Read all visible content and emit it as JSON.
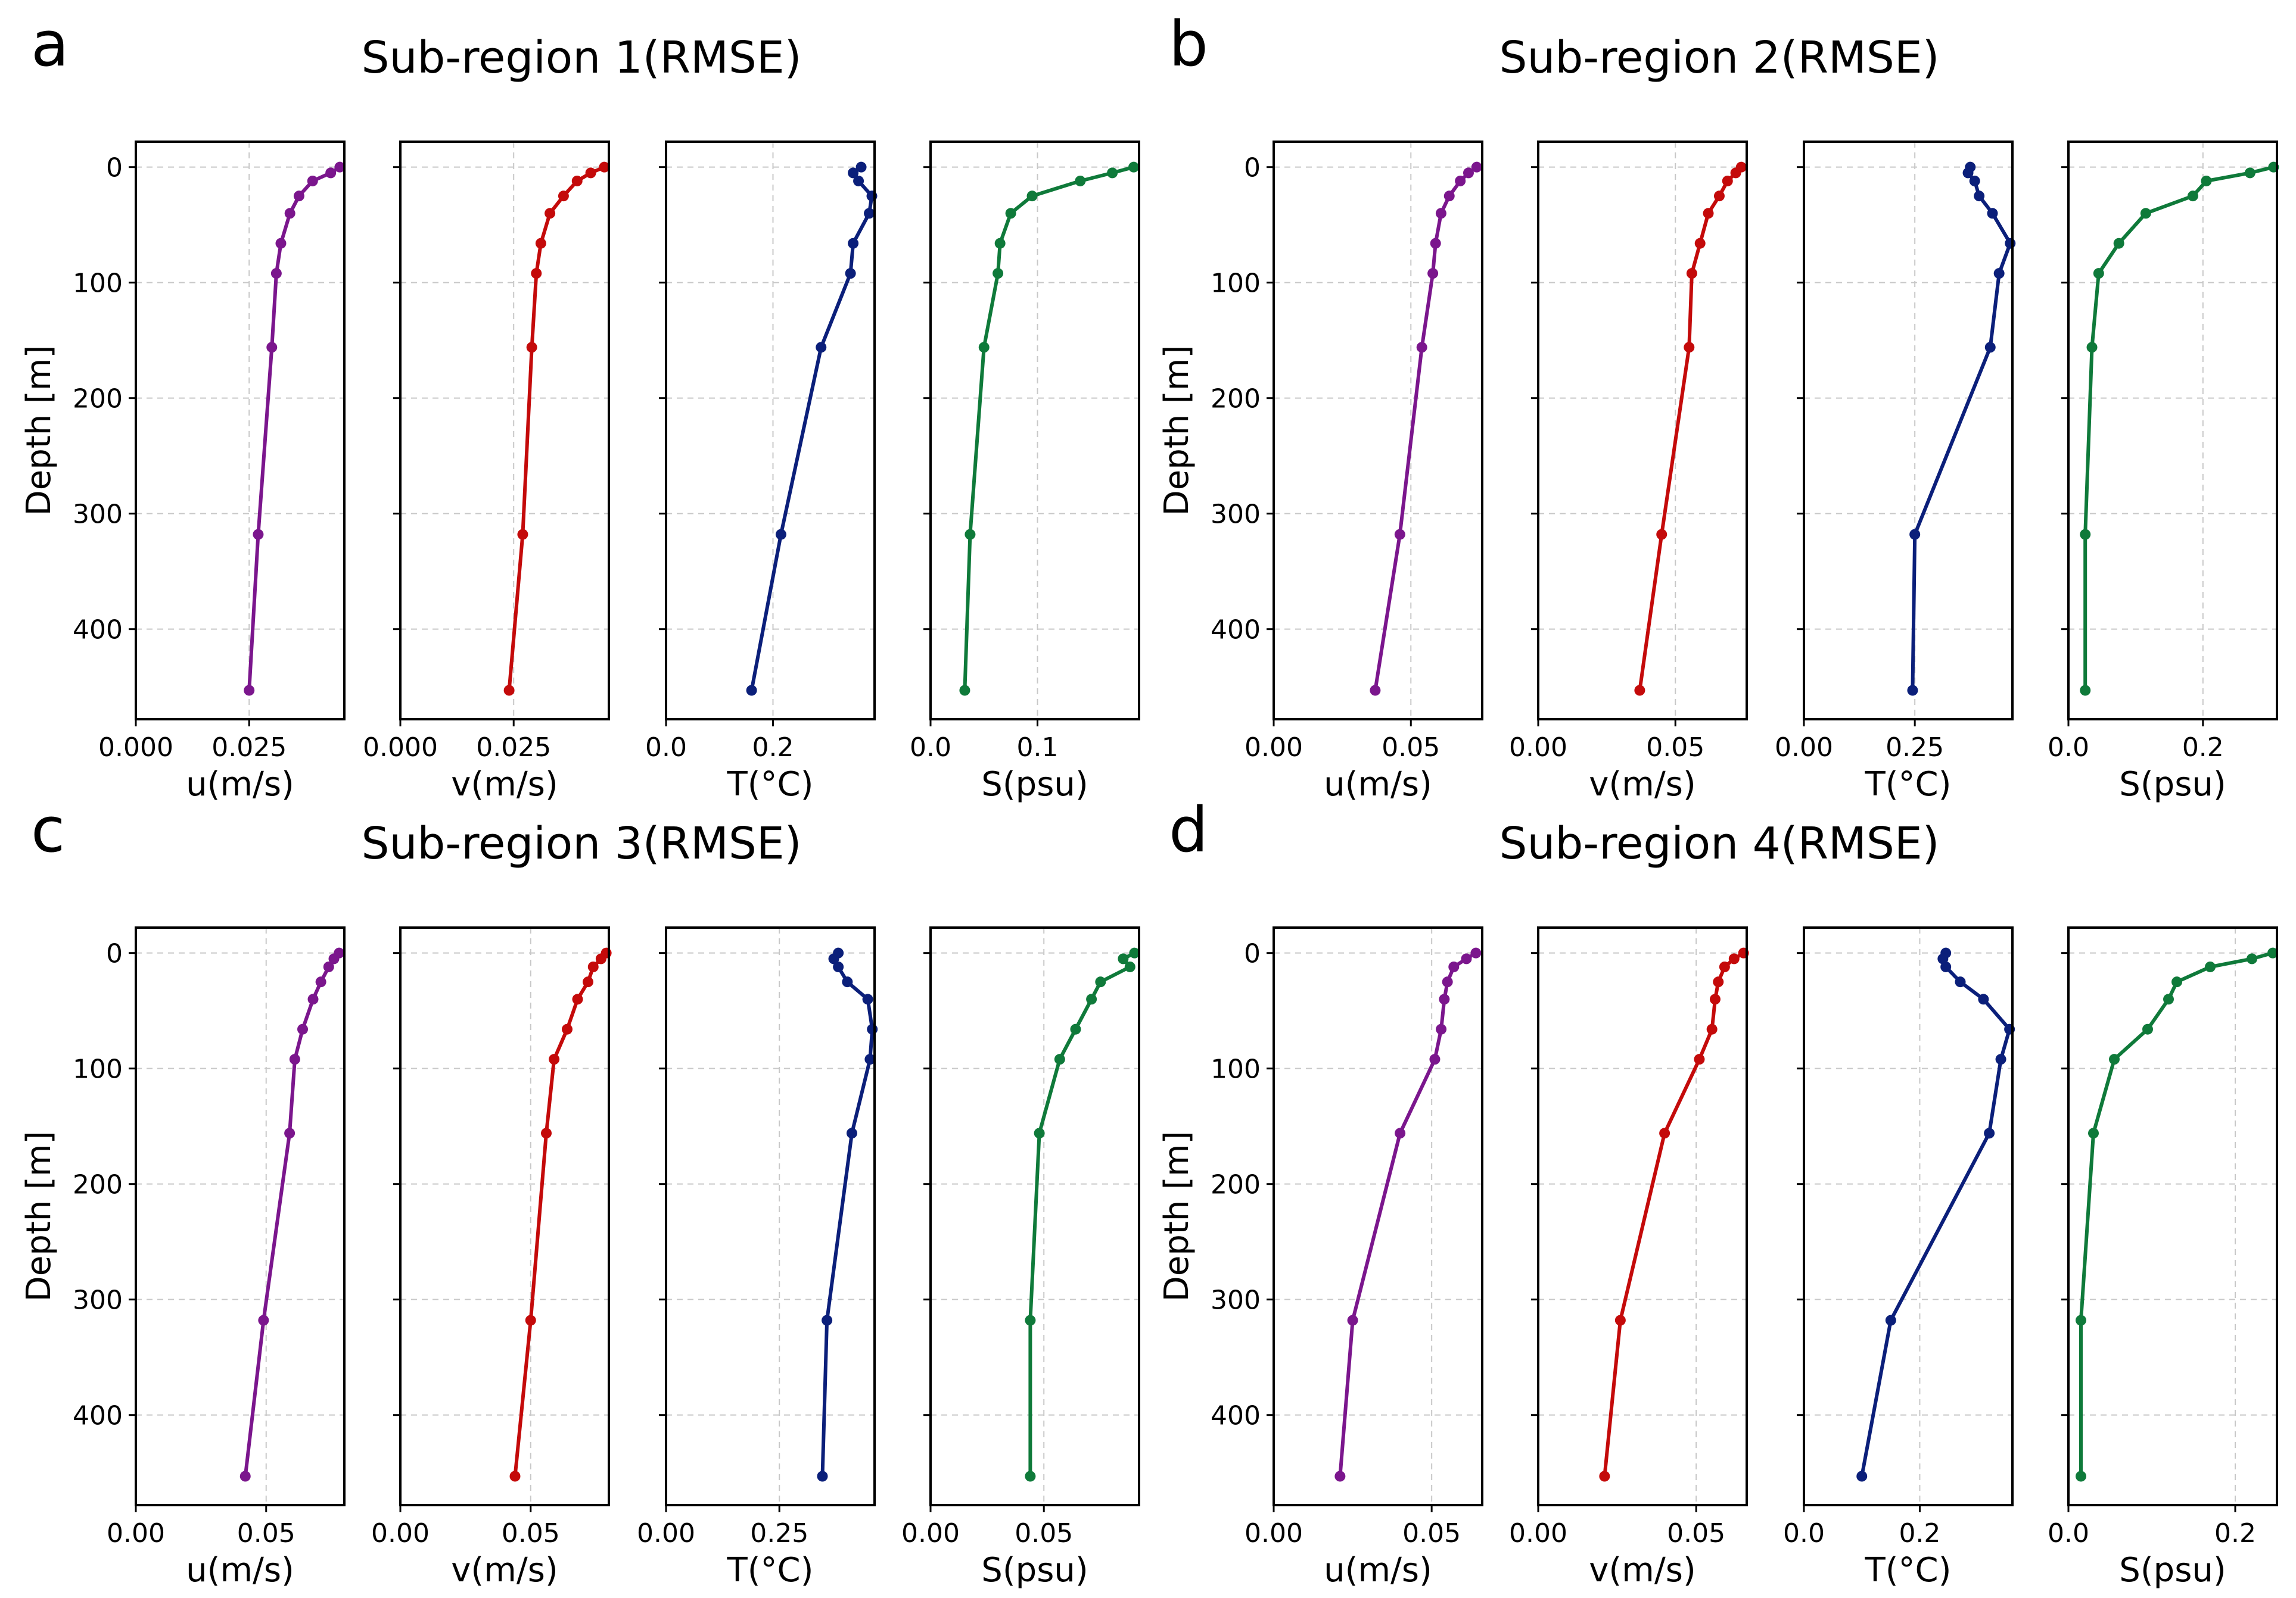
{
  "depth_label": "Depth [m]",
  "depth_ticks": [
    0,
    100,
    200,
    300,
    400
  ],
  "depth_range": [
    -22,
    478
  ],
  "depths": [
    0,
    5,
    12,
    25,
    40,
    66,
    92,
    156,
    318,
    453
  ],
  "series_colors": {
    "u": "#7b168d",
    "v": "#c40a0a",
    "T": "#0b1f7a",
    "S": "#0f7a3a"
  },
  "panels": [
    {
      "letter": "a",
      "title": "Sub-region 1(RMSE)",
      "charts": [
        {
          "var": "u",
          "xlabel": "u(m/s)",
          "xlim": [
            0,
            0.046
          ],
          "xticks": [
            0.0,
            0.025
          ],
          "xtick_labels": [
            "0.000",
            "0.025"
          ],
          "x": [
            0.045,
            0.043,
            0.039,
            0.036,
            0.034,
            0.032,
            0.031,
            0.03,
            0.027,
            0.025
          ]
        },
        {
          "var": "v",
          "xlabel": "v(m/s)",
          "xlim": [
            0,
            0.046
          ],
          "xticks": [
            0.0,
            0.025
          ],
          "xtick_labels": [
            "0.000",
            "0.025"
          ],
          "x": [
            0.045,
            0.042,
            0.039,
            0.036,
            0.033,
            0.031,
            0.03,
            0.029,
            0.027,
            0.024
          ]
        },
        {
          "var": "T",
          "xlabel": "T(°C)",
          "xlim": [
            0,
            0.39
          ],
          "xticks": [
            0.0,
            0.2
          ],
          "xtick_labels": [
            "0.0",
            "0.2"
          ],
          "x": [
            0.365,
            0.35,
            0.36,
            0.385,
            0.38,
            0.35,
            0.345,
            0.29,
            0.215,
            0.16
          ]
        },
        {
          "var": "S",
          "xlabel": "S(psu)",
          "xlim": [
            0,
            0.195
          ],
          "xticks": [
            0.0,
            0.1
          ],
          "xtick_labels": [
            "0.0",
            "0.1"
          ],
          "x": [
            0.19,
            0.17,
            0.14,
            0.095,
            0.075,
            0.065,
            0.063,
            0.05,
            0.037,
            0.032
          ]
        }
      ]
    },
    {
      "letter": "b",
      "title": "Sub-region 2(RMSE)",
      "charts": [
        {
          "var": "u",
          "xlabel": "u(m/s)",
          "xlim": [
            0,
            0.076
          ],
          "xticks": [
            0.0,
            0.05
          ],
          "xtick_labels": [
            "0.00",
            "0.05"
          ],
          "x": [
            0.074,
            0.071,
            0.068,
            0.064,
            0.061,
            0.059,
            0.058,
            0.054,
            0.046,
            0.037
          ]
        },
        {
          "var": "v",
          "xlabel": "v(m/s)",
          "xlim": [
            0,
            0.076
          ],
          "xticks": [
            0.0,
            0.05
          ],
          "xtick_labels": [
            "0.00",
            "0.05"
          ],
          "x": [
            0.074,
            0.072,
            0.069,
            0.066,
            0.062,
            0.059,
            0.056,
            0.055,
            0.045,
            0.037
          ]
        },
        {
          "var": "T",
          "xlabel": "T(°C)",
          "xlim": [
            0,
            0.47
          ],
          "xticks": [
            0.0,
            0.25
          ],
          "xtick_labels": [
            "0.00",
            "0.25"
          ],
          "x": [
            0.375,
            0.37,
            0.385,
            0.395,
            0.425,
            0.465,
            0.44,
            0.42,
            0.25,
            0.245
          ]
        },
        {
          "var": "S",
          "xlabel": "S(psu)",
          "xlim": [
            0,
            0.31
          ],
          "xticks": [
            0.0,
            0.2
          ],
          "xtick_labels": [
            "0.0",
            "0.2"
          ],
          "x": [
            0.305,
            0.27,
            0.205,
            0.185,
            0.115,
            0.075,
            0.045,
            0.035,
            0.025,
            0.025
          ]
        }
      ]
    },
    {
      "letter": "c",
      "title": "Sub-region 3(RMSE)",
      "charts": [
        {
          "var": "u",
          "xlabel": "u(m/s)",
          "xlim": [
            0,
            0.08
          ],
          "xticks": [
            0.0,
            0.05
          ],
          "xtick_labels": [
            "0.00",
            "0.05"
          ],
          "x": [
            0.078,
            0.076,
            0.074,
            0.071,
            0.068,
            0.064,
            0.061,
            0.059,
            0.049,
            0.042
          ]
        },
        {
          "var": "v",
          "xlabel": "v(m/s)",
          "xlim": [
            0,
            0.08
          ],
          "xticks": [
            0.0,
            0.05
          ],
          "xtick_labels": [
            "0.00",
            "0.05"
          ],
          "x": [
            0.079,
            0.077,
            0.074,
            0.072,
            0.068,
            0.064,
            0.059,
            0.056,
            0.05,
            0.044
          ]
        },
        {
          "var": "T",
          "xlabel": "T(°C)",
          "xlim": [
            0,
            0.46
          ],
          "xticks": [
            0.0,
            0.25
          ],
          "xtick_labels": [
            "0.00",
            "0.25"
          ],
          "x": [
            0.38,
            0.37,
            0.38,
            0.4,
            0.445,
            0.455,
            0.45,
            0.41,
            0.355,
            0.345
          ]
        },
        {
          "var": "S",
          "xlabel": "S(psu)",
          "xlim": [
            0,
            0.092
          ],
          "xticks": [
            0.0,
            0.05
          ],
          "xtick_labels": [
            "0.00",
            "0.05"
          ],
          "x": [
            0.09,
            0.085,
            0.088,
            0.075,
            0.071,
            0.064,
            0.057,
            0.048,
            0.044,
            0.044
          ]
        }
      ]
    },
    {
      "letter": "d",
      "title": "Sub-region 4(RMSE)",
      "charts": [
        {
          "var": "u",
          "xlabel": "u(m/s)",
          "xlim": [
            0,
            0.066
          ],
          "xticks": [
            0.0,
            0.05
          ],
          "xtick_labels": [
            "0.00",
            "0.05"
          ],
          "x": [
            0.064,
            0.061,
            0.057,
            0.055,
            0.054,
            0.053,
            0.051,
            0.04,
            0.025,
            0.021
          ]
        },
        {
          "var": "v",
          "xlabel": "v(m/s)",
          "xlim": [
            0,
            0.066
          ],
          "xticks": [
            0.0,
            0.05
          ],
          "xtick_labels": [
            "0.00",
            "0.05"
          ],
          "x": [
            0.065,
            0.062,
            0.059,
            0.057,
            0.056,
            0.055,
            0.051,
            0.04,
            0.026,
            0.021
          ]
        },
        {
          "var": "T",
          "xlabel": "T(°C)",
          "xlim": [
            0,
            0.36
          ],
          "xticks": [
            0.0,
            0.2
          ],
          "xtick_labels": [
            "0.0",
            "0.2"
          ],
          "x": [
            0.245,
            0.24,
            0.245,
            0.27,
            0.31,
            0.355,
            0.34,
            0.32,
            0.15,
            0.1
          ]
        },
        {
          "var": "S",
          "xlabel": "S(psu)",
          "xlim": [
            0,
            0.25
          ],
          "xticks": [
            0.0,
            0.2
          ],
          "xtick_labels": [
            "0.0",
            "0.2"
          ],
          "x": [
            0.245,
            0.22,
            0.17,
            0.13,
            0.12,
            0.095,
            0.055,
            0.03,
            0.015,
            0.015
          ]
        }
      ]
    }
  ]
}
